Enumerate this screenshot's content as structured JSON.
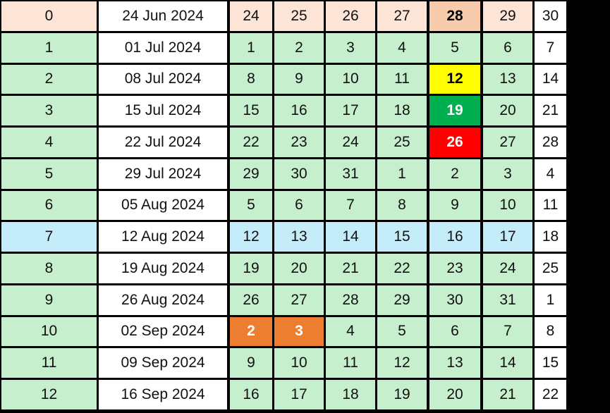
{
  "colors": {
    "header": "#FCE4D6",
    "header_hl": "#F8CBAD",
    "green": "#C6EFCE",
    "blue": "#C5EDF9",
    "white": "#FFFFFF",
    "yellow": "#FFFF00",
    "dark_green": "#00B050",
    "red": "#FF0000",
    "orange": "#ED7D31"
  },
  "rows": [
    {
      "idx": "0",
      "date": "24 Jun 2024",
      "days": [
        "24",
        "25",
        "26",
        "27",
        "28",
        "29",
        "30"
      ],
      "style": "header",
      "hl": {
        "4": {
          "bg": "header_hl",
          "color": "#000000",
          "bold": true
        }
      }
    },
    {
      "idx": "1",
      "date": "01 Jul 2024",
      "days": [
        "1",
        "2",
        "3",
        "4",
        "5",
        "6",
        "7"
      ],
      "style": "green"
    },
    {
      "idx": "2",
      "date": "08 Jul 2024",
      "days": [
        "8",
        "9",
        "10",
        "11",
        "12",
        "13",
        "14"
      ],
      "style": "green",
      "hl": {
        "4": {
          "bg": "yellow",
          "color": "#000000",
          "bold": true
        }
      }
    },
    {
      "idx": "3",
      "date": "15 Jul 2024",
      "days": [
        "15",
        "16",
        "17",
        "18",
        "19",
        "20",
        "21"
      ],
      "style": "green",
      "hl": {
        "4": {
          "bg": "dark_green",
          "color": "#FFFFFF",
          "bold": true
        }
      }
    },
    {
      "idx": "4",
      "date": "22 Jul 2024",
      "days": [
        "22",
        "23",
        "24",
        "25",
        "26",
        "27",
        "28"
      ],
      "style": "green",
      "hl": {
        "4": {
          "bg": "red",
          "color": "#FFFFFF",
          "bold": true
        }
      }
    },
    {
      "idx": "5",
      "date": "29 Jul 2024",
      "days": [
        "29",
        "30",
        "31",
        "1",
        "2",
        "3",
        "4"
      ],
      "style": "green"
    },
    {
      "idx": "6",
      "date": "05 Aug 2024",
      "days": [
        "5",
        "6",
        "7",
        "8",
        "9",
        "10",
        "11"
      ],
      "style": "green"
    },
    {
      "idx": "7",
      "date": "12 Aug 2024",
      "days": [
        "12",
        "13",
        "14",
        "15",
        "16",
        "17",
        "18"
      ],
      "style": "blue"
    },
    {
      "idx": "8",
      "date": "19 Aug 2024",
      "days": [
        "19",
        "20",
        "21",
        "22",
        "23",
        "24",
        "25"
      ],
      "style": "green"
    },
    {
      "idx": "9",
      "date": "26 Aug 2024",
      "days": [
        "26",
        "27",
        "28",
        "29",
        "30",
        "31",
        "1"
      ],
      "style": "green"
    },
    {
      "idx": "10",
      "date": "02 Sep 2024",
      "days": [
        "2",
        "3",
        "4",
        "5",
        "6",
        "7",
        "8"
      ],
      "style": "green",
      "hl": {
        "0": {
          "bg": "orange",
          "color": "#FFFFFF",
          "bold": true
        },
        "1": {
          "bg": "orange",
          "color": "#FFFFFF",
          "bold": true
        }
      }
    },
    {
      "idx": "11",
      "date": "09 Sep 2024",
      "days": [
        "9",
        "10",
        "11",
        "12",
        "13",
        "14",
        "15"
      ],
      "style": "green"
    },
    {
      "idx": "12",
      "date": "16 Sep 2024",
      "days": [
        "16",
        "17",
        "18",
        "19",
        "20",
        "21",
        "22"
      ],
      "style": "green"
    }
  ]
}
